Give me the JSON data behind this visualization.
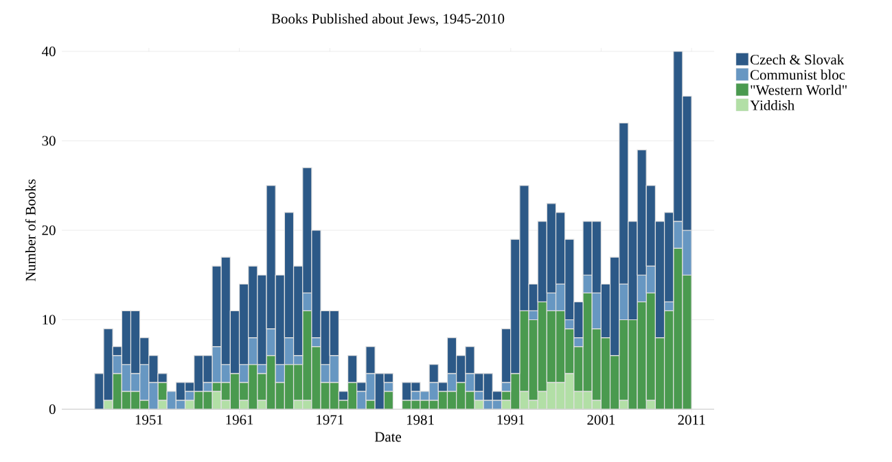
{
  "chart_data": {
    "type": "bar",
    "title": "Books Published about Jews, 1945-2010",
    "xlabel": "Date",
    "ylabel": "Number of Books",
    "stacked": true,
    "grid": "y",
    "legend": "top right",
    "x": [
      "1945-07-01",
      "1946-07-01",
      "1947-07-01",
      "1948-07-01",
      "1949-07-01",
      "1950-07-01",
      "1951-07-01",
      "1952-07-01",
      "1953-07-01",
      "1954-07-01",
      "1955-07-01",
      "1956-07-01",
      "1957-07-01",
      "1958-07-01",
      "1959-07-01",
      "1960-07-01",
      "1961-07-01",
      "1962-07-01",
      "1963-07-01",
      "1964-07-01",
      "1965-07-01",
      "1966-07-01",
      "1967-07-01",
      "1968-07-01",
      "1969-07-01",
      "1970-07-01",
      "1971-07-01",
      "1972-07-01",
      "1973-07-01",
      "1974-07-01",
      "1975-07-01",
      "1976-07-01",
      "1977-07-01",
      "1978-07-01",
      "1979-07-01",
      "1980-07-01",
      "1981-07-01",
      "1982-07-01",
      "1983-07-01",
      "1984-07-01",
      "1985-07-01",
      "1986-07-01",
      "1987-07-01",
      "1988-07-01",
      "1989-07-01",
      "1990-07-01",
      "1991-07-01",
      "1992-07-01",
      "1993-07-01",
      "1994-07-01",
      "1995-07-01",
      "1996-07-01",
      "1997-07-01",
      "1998-07-01",
      "1999-07-01",
      "2000-07-01",
      "2001-07-01",
      "2002-07-01",
      "2003-07-01",
      "2004-07-01",
      "2005-07-01",
      "2006-07-01",
      "2007-07-01",
      "2008-07-01",
      "2009-07-01",
      "2010-07-01"
    ],
    "series": [
      {
        "name": "Yiddish",
        "color": "#b2dfa6",
        "values": [
          0,
          1,
          0,
          0,
          0,
          0,
          0,
          1,
          0,
          0,
          1,
          0,
          0,
          2,
          1,
          0,
          1,
          0,
          1,
          0,
          0,
          0,
          1,
          1,
          0,
          0,
          0,
          0,
          0,
          0,
          0,
          0,
          0,
          0,
          0,
          0,
          0,
          0,
          0,
          0,
          0,
          0,
          1,
          0,
          0,
          1,
          0,
          2,
          1,
          2,
          3,
          3,
          4,
          2,
          2,
          1,
          0,
          0,
          1,
          0,
          0,
          1,
          0,
          0,
          0,
          0
        ]
      },
      {
        "name": "\"Western World\"",
        "color": "#4a9a4f",
        "values": [
          0,
          0,
          4,
          2,
          2,
          1,
          0,
          2,
          0,
          0,
          0,
          2,
          2,
          1,
          2,
          4,
          2,
          5,
          3,
          6,
          3,
          5,
          4,
          10,
          7,
          3,
          3,
          1,
          3,
          0,
          1,
          0,
          2,
          0,
          1,
          1,
          1,
          1,
          2,
          2,
          3,
          2,
          0,
          0,
          0,
          1,
          4,
          9,
          9,
          10,
          8,
          8,
          5,
          5,
          11,
          8,
          8,
          6,
          9,
          10,
          12,
          12,
          8,
          11,
          18,
          15
        ]
      },
      {
        "name": "Communist bloc",
        "color": "#6797c2",
        "values": [
          0,
          0,
          2,
          3,
          2,
          4,
          3,
          0,
          2,
          1,
          1,
          0,
          1,
          4,
          2,
          0,
          2,
          3,
          1,
          3,
          2,
          3,
          1,
          2,
          1,
          2,
          3,
          0,
          0,
          2,
          3,
          0,
          1,
          0,
          0,
          1,
          1,
          2,
          0,
          2,
          0,
          2,
          1,
          1,
          1,
          1,
          0,
          0,
          1,
          0,
          2,
          3,
          1,
          1,
          2,
          4,
          0,
          0,
          4,
          0,
          3,
          3,
          0,
          1,
          3,
          5
        ]
      },
      {
        "name": "Czech & Slovak",
        "color": "#2c5987",
        "values": [
          4,
          8,
          1,
          6,
          7,
          3,
          3,
          1,
          0,
          2,
          1,
          4,
          3,
          9,
          12,
          7,
          9,
          8,
          10,
          16,
          10,
          14,
          10,
          14,
          12,
          6,
          5,
          1,
          3,
          1,
          3,
          4,
          1,
          0,
          2,
          1,
          0,
          2,
          1,
          4,
          3,
          3,
          2,
          3,
          1,
          6,
          15,
          14,
          3,
          9,
          10,
          8,
          9,
          4,
          6,
          8,
          6,
          11,
          18,
          11,
          14,
          9,
          13,
          10,
          19,
          15
        ]
      }
    ],
    "xlim": [
      "1941-05-15",
      "2013-07-01"
    ],
    "xticks": [
      "1951",
      "1961",
      "1971",
      "1981",
      "1991",
      "2001",
      "2011"
    ],
    "ylim": [
      0,
      40
    ],
    "yticks": [
      0,
      10,
      20,
      30,
      40
    ]
  }
}
